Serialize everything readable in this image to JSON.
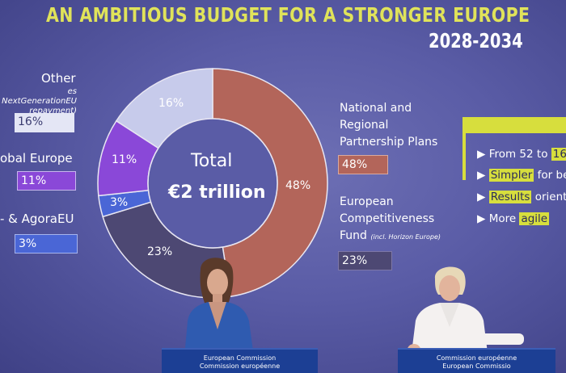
{
  "slide": {
    "title": "AN AMBITIOUS BUDGET FOR A STRONGER EUROPE",
    "years": "2028-2034",
    "center_label_1": "Total",
    "center_label_2": "€2 trillion",
    "colors": {
      "background": "#5a5ca6",
      "title": "#e0e35a",
      "national": "#b3655a",
      "competitiveness": "#4d4873",
      "agora": "#4a66d6",
      "global": "#8a48d8",
      "other": "#c7cbeb"
    },
    "left_legend": {
      "other_label": "Other",
      "other_note": "es NextGenerationEU repayment)",
      "other_pct": "16%",
      "global_label": "obal Europe",
      "global_pct": "11%",
      "agora_label": "- & AgoraEU",
      "agora_pct": "3%"
    },
    "right_legend": {
      "national_label_1": "National and",
      "national_label_2": "Regional",
      "national_label_3": "Partnership Plans",
      "national_pct": "48%",
      "comp_label_1": "European",
      "comp_label_2": "Competitiveness",
      "comp_label_3": "Fund",
      "comp_note": "(incl. Horizon Europe)",
      "comp_pct": "23%"
    },
    "donut_labels": {
      "national": "48%",
      "competitiveness": "23%",
      "agora": "3%",
      "global": "11%",
      "other": "16%"
    },
    "chart_data": {
      "type": "pie",
      "categories": [
        "National and Regional Partnership Plans",
        "European Competitiveness Fund",
        "& AgoraEU",
        "Global Europe",
        "Other"
      ],
      "values": [
        48,
        23,
        3,
        11,
        16
      ],
      "title": "Total €2 trillion"
    },
    "bullets": {
      "b1_text": "From 52 to",
      "b1_hl": "16",
      "b2_hl": "Simpler",
      "b2_text": "for ber",
      "b3_hl": "Results",
      "b3_text": "oriente",
      "b4_text": "More",
      "b4_hl": "agile"
    }
  },
  "podiums": {
    "left_line1": "European Commission",
    "left_line2": "Commission européenne",
    "right_line1": "Commission européenne",
    "right_line2": "European Commissio"
  }
}
